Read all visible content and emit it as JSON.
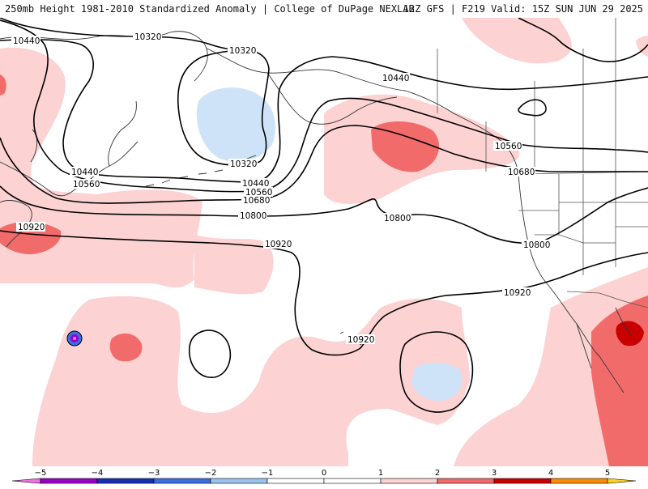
{
  "header": {
    "left": "250mb Height 1981-2010 Standardized Anomaly | College of DuPage NEXLAB",
    "right": "12Z GFS | F219 Valid: 15Z SUN JUN 29 2025"
  },
  "colors": {
    "anom_pos_1": "#fcd2d2",
    "anom_pos_2": "#f26b6b",
    "anom_pos_3": "#c80000",
    "anom_neg_1": "#cfe3f8",
    "contour": "#000000",
    "land_outline": "#333333"
  },
  "contour_labels": {
    "c10320_a": "10320",
    "c10320_b": "10320",
    "c10320_c": "10320",
    "c10440_a": "10440",
    "c10440_b": "10440",
    "c10440_c": "10440",
    "c10440_d": "10440",
    "c10560_a": "10560",
    "c10560_b": "10560",
    "c10560_c": "10560",
    "c10680_a": "10680",
    "c10680_b": "10680",
    "c10800_a": "10800",
    "c10800_b": "10800",
    "c10800_c": "10800",
    "c10920_a": "10920",
    "c10920_b": "10920",
    "c10920_c": "10920",
    "c10920_d": "10920"
  },
  "colorbar": {
    "ticks": [
      "−5",
      "−4",
      "−3",
      "−2",
      "−1",
      "0",
      "1",
      "2",
      "3",
      "4",
      "5"
    ],
    "bins": [
      {
        "lo": -5.5,
        "hi": -5,
        "color": "#f06fe6"
      },
      {
        "lo": -5,
        "hi": -4,
        "color": "#9b00c8"
      },
      {
        "lo": -4,
        "hi": -3,
        "color": "#1630b0"
      },
      {
        "lo": -3,
        "hi": -2,
        "color": "#3a6fe0"
      },
      {
        "lo": -2,
        "hi": -1,
        "color": "#9cc4f0"
      },
      {
        "lo": -1,
        "hi": 0,
        "color": "#ffffff"
      },
      {
        "lo": 0,
        "hi": 1,
        "color": "#ffffff"
      },
      {
        "lo": 1,
        "hi": 2,
        "color": "#fcd2d2"
      },
      {
        "lo": 2,
        "hi": 3,
        "color": "#f26b6b"
      },
      {
        "lo": 3,
        "hi": 4,
        "color": "#c80000"
      },
      {
        "lo": 4,
        "hi": 5,
        "color": "#ff8c00"
      },
      {
        "lo": 5,
        "hi": 5.5,
        "color": "#ffd21e"
      }
    ]
  }
}
